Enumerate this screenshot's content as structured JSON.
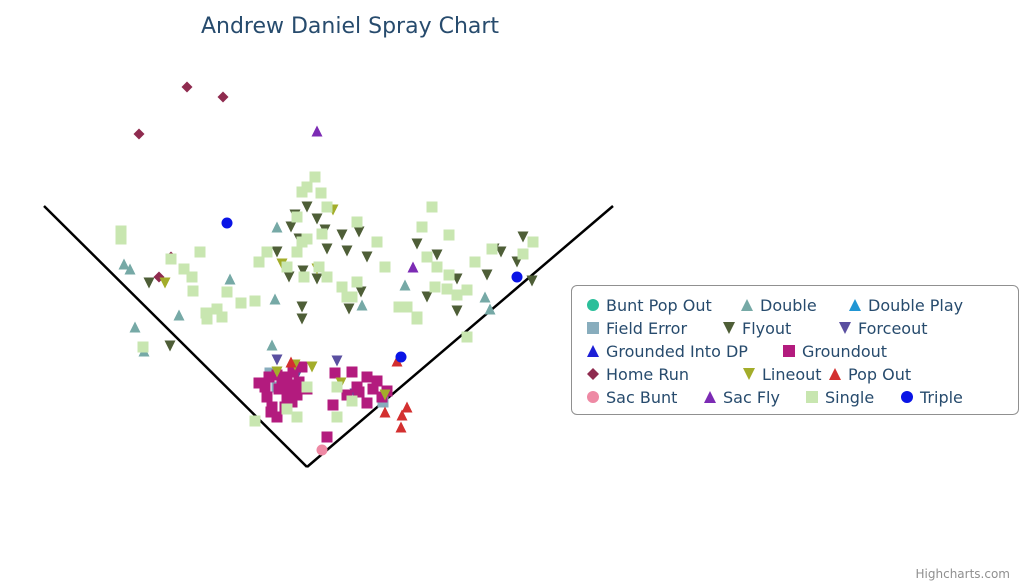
{
  "chart_data": {
    "type": "scatter",
    "title": "Andrew Daniel Spray Chart",
    "xlabel": "",
    "ylabel": "",
    "grid": false,
    "legend_position": "right",
    "series": [
      {
        "name": "Bunt Pop Out",
        "marker": "circle",
        "color": "#2bbf9a",
        "points": []
      },
      {
        "name": "Double",
        "marker": "triangle",
        "color": "#76a9a6",
        "points": [
          [
            -177,
            198
          ],
          [
            -163,
            116
          ],
          [
            -128,
            152
          ],
          [
            -172,
            140
          ],
          [
            -183,
            203
          ],
          [
            -77,
            188
          ],
          [
            -35,
            122
          ],
          [
            -32,
            168
          ],
          [
            55,
            162
          ],
          [
            98,
            182
          ],
          [
            178,
            170
          ],
          [
            183,
            158
          ],
          [
            -30,
            240
          ]
        ]
      },
      {
        "name": "Double Play",
        "marker": "triangle",
        "color": "#2196d4",
        "points": []
      },
      {
        "name": "Field Error",
        "marker": "square",
        "color": "#88adbd",
        "points": [
          [
            -37,
            94
          ],
          [
            76,
            65
          ],
          [
            -30,
            80
          ]
        ]
      },
      {
        "name": "Flyout",
        "marker": "triangle-down",
        "color": "#4e5e37",
        "points": [
          [
            0,
            260
          ],
          [
            -12,
            252
          ],
          [
            10,
            248
          ],
          [
            -8,
            228
          ],
          [
            18,
            237
          ],
          [
            -16,
            240
          ],
          [
            20,
            218
          ],
          [
            35,
            232
          ],
          [
            52,
            235
          ],
          [
            -30,
            215
          ],
          [
            40,
            216
          ],
          [
            60,
            210
          ],
          [
            -18,
            190
          ],
          [
            -4,
            196
          ],
          [
            10,
            188
          ],
          [
            -5,
            160
          ],
          [
            42,
            158
          ],
          [
            54,
            175
          ],
          [
            110,
            223
          ],
          [
            130,
            212
          ],
          [
            150,
            188
          ],
          [
            180,
            192
          ],
          [
            194,
            215
          ],
          [
            210,
            205
          ],
          [
            225,
            186
          ],
          [
            216,
            230
          ],
          [
            187,
            218
          ],
          [
            150,
            156
          ],
          [
            120,
            170
          ],
          [
            -158,
            184
          ],
          [
            -137,
            121
          ],
          [
            -5,
            148
          ]
        ]
      },
      {
        "name": "Forceout",
        "marker": "triangle-down",
        "color": "#5a4fa0",
        "points": [
          [
            -30,
            107
          ],
          [
            -10,
            92
          ],
          [
            30,
            106
          ],
          [
            48,
            73
          ]
        ]
      },
      {
        "name": "Grounded Into DP",
        "marker": "triangle",
        "color": "#1d1fd6",
        "points": []
      },
      {
        "name": "Groundout",
        "marker": "square",
        "color": "#b31b7e",
        "points": [
          [
            -40,
            70
          ],
          [
            -20,
            70
          ],
          [
            -10,
            80
          ],
          [
            -25,
            85
          ],
          [
            -35,
            60
          ],
          [
            -30,
            50
          ],
          [
            -15,
            65
          ],
          [
            -28,
            78
          ],
          [
            -42,
            80
          ],
          [
            -20,
            90
          ],
          [
            -8,
            85
          ],
          [
            0,
            78
          ],
          [
            -22,
            60
          ],
          [
            -36,
            55
          ],
          [
            -10,
            72
          ],
          [
            -30,
            92
          ],
          [
            -38,
            90
          ],
          [
            -14,
            95
          ],
          [
            40,
            72
          ],
          [
            50,
            80
          ],
          [
            60,
            90
          ],
          [
            70,
            86
          ],
          [
            75,
            70
          ],
          [
            45,
            95
          ],
          [
            66,
            78
          ],
          [
            80,
            76
          ],
          [
            -2,
            80
          ],
          [
            -48,
            84
          ],
          [
            -16,
            82
          ],
          [
            26,
            62
          ],
          [
            20,
            30
          ],
          [
            28,
            94
          ],
          [
            -5,
            100
          ],
          [
            -20,
            75
          ],
          [
            52,
            75
          ],
          [
            60,
            64
          ]
        ]
      },
      {
        "name": "Home Run",
        "marker": "diamond",
        "color": "#8f2b4f",
        "points": [
          [
            -120,
            380
          ],
          [
            -84,
            370
          ],
          [
            -168,
            333
          ],
          [
            -136,
            210
          ],
          [
            -148,
            190
          ]
        ]
      },
      {
        "name": "Lineout",
        "marker": "triangle-down",
        "color": "#a3ad2a",
        "points": [
          [
            -25,
            203
          ],
          [
            10,
            198
          ],
          [
            26,
            257
          ],
          [
            -142,
            184
          ],
          [
            5,
            100
          ],
          [
            -12,
            102
          ],
          [
            34,
            84
          ],
          [
            78,
            72
          ],
          [
            -30,
            95
          ]
        ]
      },
      {
        "name": "Pop Out",
        "marker": "triangle",
        "color": "#d32f2f",
        "points": [
          [
            90,
            106
          ],
          [
            100,
            60
          ],
          [
            95,
            52
          ],
          [
            78,
            55
          ],
          [
            94,
            40
          ],
          [
            -16,
            105
          ]
        ]
      },
      {
        "name": "Sac Bunt",
        "marker": "circle",
        "color": "#ee89a4",
        "points": [
          [
            15,
            17
          ]
        ]
      },
      {
        "name": "Sac Fly",
        "marker": "triangle",
        "color": "#7c2bb4",
        "points": [
          [
            10,
            336
          ],
          [
            106,
            200
          ]
        ]
      },
      {
        "name": "Single",
        "marker": "square",
        "color": "#c8e6b0",
        "points": [
          [
            -186,
            228
          ],
          [
            -164,
            120
          ],
          [
            -186,
            236
          ],
          [
            -136,
            208
          ],
          [
            -123,
            198
          ],
          [
            -114,
            176
          ],
          [
            -100,
            148
          ],
          [
            -90,
            158
          ],
          [
            -85,
            150
          ],
          [
            -101,
            154
          ],
          [
            -115,
            190
          ],
          [
            -107,
            215
          ],
          [
            -80,
            175
          ],
          [
            -66,
            164
          ],
          [
            -52,
            166
          ],
          [
            -48,
            205
          ],
          [
            -40,
            215
          ],
          [
            -20,
            200
          ],
          [
            -3,
            190
          ],
          [
            12,
            200
          ],
          [
            20,
            190
          ],
          [
            35,
            180
          ],
          [
            40,
            170
          ],
          [
            45,
            170
          ],
          [
            50,
            185
          ],
          [
            50,
            245
          ],
          [
            70,
            225
          ],
          [
            78,
            200
          ],
          [
            92,
            160
          ],
          [
            110,
            150
          ],
          [
            120,
            210
          ],
          [
            128,
            180
          ],
          [
            130,
            200
          ],
          [
            140,
            178
          ],
          [
            150,
            172
          ],
          [
            160,
            177
          ],
          [
            142,
            192
          ],
          [
            115,
            240
          ],
          [
            125,
            260
          ],
          [
            142,
            232
          ],
          [
            168,
            205
          ],
          [
            185,
            218
          ],
          [
            226,
            225
          ],
          [
            216,
            213
          ],
          [
            160,
            130
          ],
          [
            110,
            148
          ],
          [
            100,
            160
          ],
          [
            -10,
            250
          ],
          [
            0,
            280
          ],
          [
            14,
            274
          ],
          [
            -5,
            275
          ],
          [
            8,
            290
          ],
          [
            20,
            260
          ],
          [
            -10,
            215
          ],
          [
            -5,
            225
          ],
          [
            0,
            228
          ],
          [
            15,
            233
          ],
          [
            -52,
            46
          ],
          [
            -20,
            58
          ],
          [
            -10,
            50
          ],
          [
            30,
            50
          ],
          [
            45,
            66
          ],
          [
            30,
            80
          ],
          [
            0,
            80
          ]
        ]
      },
      {
        "name": "Triple",
        "marker": "circle",
        "color": "#0a14e6",
        "points": [
          [
            -80,
            244
          ],
          [
            210,
            190
          ],
          [
            94,
            110
          ]
        ]
      }
    ]
  },
  "legend": {
    "items": [
      "Bunt Pop Out",
      "Double",
      "Double Play",
      "Field Error",
      "Flyout",
      "Forceout",
      "Grounded Into DP",
      "Groundout",
      "Home Run",
      "Lineout",
      "Pop Out",
      "Sac Bunt",
      "Sac Fly",
      "Single",
      "Triple"
    ]
  },
  "credit": "Highcharts.com"
}
